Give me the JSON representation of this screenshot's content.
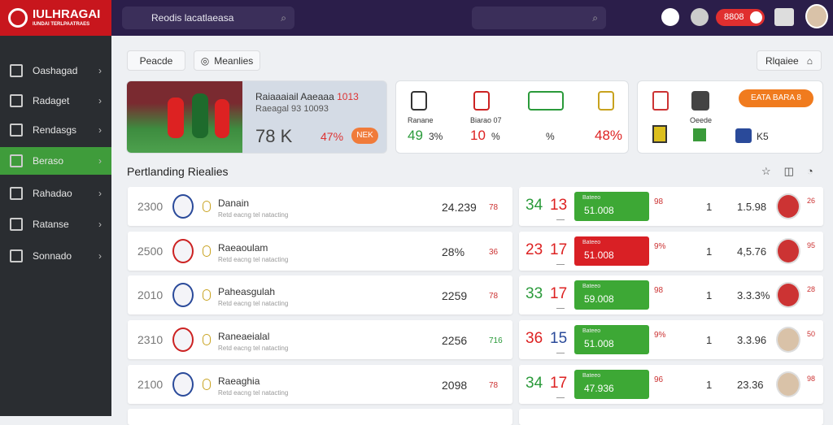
{
  "logo": {
    "title": "IULHRAGAI",
    "subtitle": "IUNDAI TERLPAATRAES"
  },
  "nav": [
    "Oashagad",
    "Radaget",
    "Rendasgs",
    "Beraso",
    "Rahadao",
    "Ratanse",
    "Sonnado"
  ],
  "topbar": {
    "search": "Reodis lacatlaeasa",
    "badge": "8808"
  },
  "breadcrumb": [
    "Peacde",
    "Meanlies"
  ],
  "toolbar_right": "Rlqaiee",
  "card1": {
    "title": "Raiaaaiail Aaeaaa",
    "title_num": "1013",
    "subtitle": "Raeagal 93 10093",
    "big": "78 K",
    "pct": "47%",
    "button": "NEK"
  },
  "card2": {
    "items": [
      {
        "label": "Ranane",
        "value": "49",
        "unit": "3%"
      },
      {
        "label": "Biarao 07",
        "value": "10",
        "unit": "%"
      },
      {
        "label": "",
        "value": "",
        "unit": "%"
      },
      {
        "label": "",
        "value": "48%",
        "unit": ""
      }
    ]
  },
  "card3": {
    "label": "Oeede",
    "pill": "EATA BARA 8",
    "value": "K5"
  },
  "section_title": "Pertlanding Riealies",
  "rows": [
    {
      "rank": "2300",
      "name": "Danain",
      "sub": "Retd eacng tel natacting",
      "value": "24.239",
      "small": "78",
      "a": "34",
      "b": "13",
      "box_top": "Bateeo",
      "box": "51.008",
      "c": "98",
      "d": "1",
      "e": "1.5.98",
      "f": "26"
    },
    {
      "rank": "2500",
      "name": "Raeaoulam",
      "sub": "Retd eacng tel natacting",
      "value": "28%",
      "small": "36",
      "a": "23",
      "b": "17",
      "box_top": "Bateeo",
      "box": "51.008",
      "c": "9%",
      "d": "1",
      "e": "4,5.76",
      "f": "95"
    },
    {
      "rank": "2010",
      "name": "Paheasgulah",
      "sub": "Retd eacng tel natacting",
      "value": "2259",
      "small": "78",
      "a": "33",
      "b": "17",
      "box_top": "Bateeo",
      "box": "59.008",
      "c": "98",
      "d": "1",
      "e": "3.3.3%",
      "f": "28"
    },
    {
      "rank": "2310",
      "name": "Raneaeialal",
      "sub": "Retd eacng tel natacting",
      "value": "2256",
      "small": "716",
      "a": "36",
      "b": "15",
      "box_top": "Bateeo",
      "box": "51.008",
      "c": "9%",
      "d": "1",
      "e": "3.3.96",
      "f": "50"
    },
    {
      "rank": "2100",
      "name": "Raeaghia",
      "sub": "Retd eacng tel natacting",
      "value": "2098",
      "small": "78",
      "a": "34",
      "b": "17",
      "box_top": "Bateeo",
      "box": "47.936",
      "c": "96",
      "d": "1",
      "e": "23.36",
      "f": "98"
    }
  ]
}
